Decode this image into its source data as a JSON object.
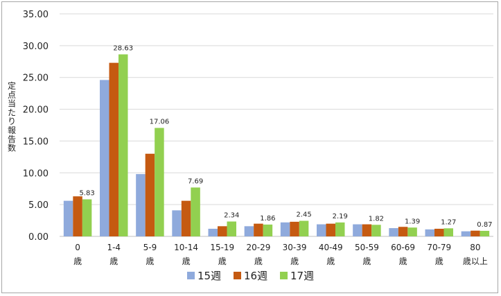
{
  "chart_data": {
    "type": "bar",
    "ylabel": "定点当たり報告数",
    "ylim": [
      0,
      35
    ],
    "ytick_step": 5,
    "ytick_labels": [
      "0.00",
      "5.00",
      "10.00",
      "15.00",
      "20.00",
      "25.00",
      "30.00",
      "35.00"
    ],
    "grid": true,
    "legend_position": "bottom",
    "categories": [
      {
        "top": "0",
        "bottom": "歳"
      },
      {
        "top": "1-4",
        "bottom": "歳"
      },
      {
        "top": "5-9",
        "bottom": "歳"
      },
      {
        "top": "10-14",
        "bottom": "歳"
      },
      {
        "top": "15-19",
        "bottom": "歳"
      },
      {
        "top": "20-29",
        "bottom": "歳"
      },
      {
        "top": "30-39",
        "bottom": "歳"
      },
      {
        "top": "40-49",
        "bottom": "歳"
      },
      {
        "top": "50-59",
        "bottom": "歳"
      },
      {
        "top": "60-69",
        "bottom": "歳"
      },
      {
        "top": "70-79",
        "bottom": "歳"
      },
      {
        "top": "80",
        "bottom": "歳以上"
      }
    ],
    "series": [
      {
        "name": "15週",
        "color": "#8faadc",
        "values": [
          5.6,
          24.6,
          9.8,
          4.1,
          1.2,
          1.6,
          2.2,
          1.9,
          1.9,
          1.3,
          1.1,
          0.8
        ]
      },
      {
        "name": "16週",
        "color": "#c55a11",
        "values": [
          6.3,
          27.3,
          13.0,
          5.6,
          1.6,
          2.0,
          2.3,
          2.0,
          1.9,
          1.5,
          1.2,
          0.9
        ]
      },
      {
        "name": "17週",
        "color": "#92d050",
        "values": [
          5.83,
          28.63,
          17.06,
          7.69,
          2.34,
          1.86,
          2.45,
          2.19,
          1.82,
          1.39,
          1.27,
          0.87
        ],
        "data_labels": [
          "5.83",
          "28.63",
          "17.06",
          "7.69",
          "2.34",
          "1.86",
          "2.45",
          "2.19",
          "1.82",
          "1.39",
          "1.27",
          "0.87"
        ]
      }
    ]
  }
}
